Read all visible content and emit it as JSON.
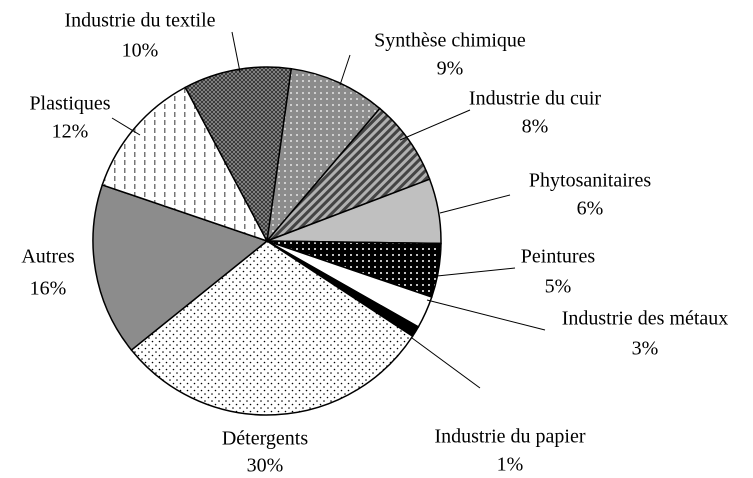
{
  "chart_data": {
    "type": "pie",
    "categories": [
      "Synthèse chimique",
      "Industrie du cuir",
      "Phytosanitaires",
      "Peintures",
      "Industrie des métaux",
      "Industrie du papier",
      "Détergents",
      "Autres",
      "Plastiques",
      "Industrie du textile"
    ],
    "values": [
      9,
      8,
      6,
      5,
      3,
      1,
      30,
      16,
      12,
      10
    ],
    "value_labels": [
      "9%",
      "8%",
      "6%",
      "5%",
      "3%",
      "1%",
      "30%",
      "16%",
      "12%",
      "10%"
    ],
    "colors": [
      "#8c8c8c",
      "#b0b0b0",
      "#c0c0c0",
      "#000000",
      "#ffffff",
      "#000000",
      "#ffffff",
      "#8c8c8c",
      "#ffffff",
      "#9a9a9a"
    ]
  }
}
